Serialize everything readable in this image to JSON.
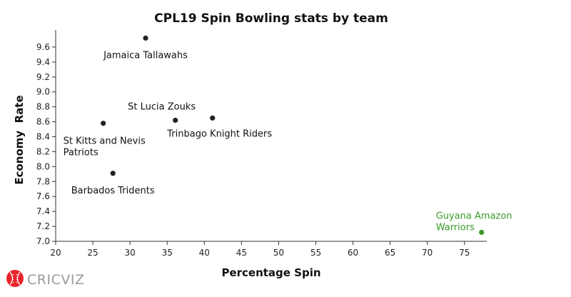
{
  "chart_data": {
    "type": "scatter",
    "title": "CPL19 Spin Bowling stats by team",
    "xlabel": "Percentage Spin",
    "ylabel": "Economy  Rate",
    "xlim": [
      20,
      78
    ],
    "ylim": [
      7.0,
      9.8
    ],
    "xticks": [
      20,
      25,
      30,
      35,
      40,
      45,
      50,
      55,
      60,
      65,
      70,
      75
    ],
    "yticks": [
      "7.0",
      "7.2",
      "7.4",
      "7.6",
      "7.8",
      "8.0",
      "8.2",
      "8.4",
      "8.6",
      "8.8",
      "9.0",
      "9.2",
      "9.4",
      "9.6"
    ],
    "grid": false,
    "points": [
      {
        "label": [
          "Jamaica Tallawahs"
        ],
        "x": 32.1,
        "y": 9.72,
        "color": "#222222",
        "label_pos": "below"
      },
      {
        "label": [
          "St Lucia Zouks"
        ],
        "x": 36.1,
        "y": 8.62,
        "color": "#222222",
        "label_pos": "above"
      },
      {
        "label": [
          "Trinbago Knight Riders"
        ],
        "x": 41.1,
        "y": 8.65,
        "color": "#222222",
        "label_pos": "below"
      },
      {
        "label": [
          "St Kitts and Nevis",
          "Patriots"
        ],
        "x": 26.4,
        "y": 8.58,
        "color": "#222222",
        "label_pos": "below-left"
      },
      {
        "label": [
          "Barbados Tridents"
        ],
        "x": 27.7,
        "y": 7.91,
        "color": "#222222",
        "label_pos": "below"
      },
      {
        "label": [
          "Guyana Amazon",
          "Warriors"
        ],
        "x": 77.3,
        "y": 7.12,
        "color": "#3a9a2a",
        "label_pos": "above-left"
      }
    ]
  },
  "branding": {
    "name": "CRICVIZ",
    "colors": {
      "ball": "#e8232a",
      "text": "#9a9aa0"
    }
  }
}
